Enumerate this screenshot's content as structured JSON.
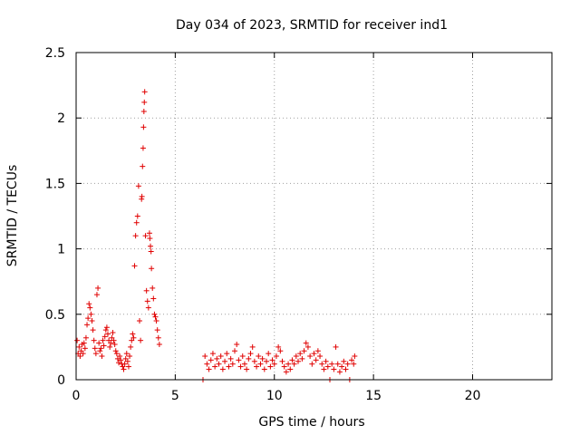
{
  "chart_data": {
    "type": "scatter",
    "title": "Day 034 of 2023, SRMTID for receiver ind1",
    "xlabel": "GPS time / hours",
    "ylabel": "SRMTID / TECUs",
    "xlim": [
      0,
      24
    ],
    "ylim": [
      0,
      2.5
    ],
    "xticks": [
      0,
      5,
      10,
      15,
      20
    ],
    "yticks": [
      0,
      0.5,
      1,
      1.5,
      2,
      2.5
    ],
    "ytick_labels": [
      "0",
      "0.5",
      "1",
      "1.5",
      "2",
      "2.5"
    ],
    "grid": true,
    "marker": "+",
    "color": "#e00000",
    "series": [
      {
        "name": "ind1",
        "points": [
          [
            0.05,
            0.3
          ],
          [
            0.1,
            0.2
          ],
          [
            0.15,
            0.25
          ],
          [
            0.2,
            0.18
          ],
          [
            0.25,
            0.22
          ],
          [
            0.3,
            0.27
          ],
          [
            0.35,
            0.2
          ],
          [
            0.4,
            0.28
          ],
          [
            0.45,
            0.24
          ],
          [
            0.5,
            0.32
          ],
          [
            0.55,
            0.42
          ],
          [
            0.6,
            0.47
          ],
          [
            0.65,
            0.58
          ],
          [
            0.7,
            0.55
          ],
          [
            0.75,
            0.5
          ],
          [
            0.8,
            0.45
          ],
          [
            0.85,
            0.38
          ],
          [
            0.9,
            0.3
          ],
          [
            0.95,
            0.24
          ],
          [
            1.0,
            0.2
          ],
          [
            1.05,
            0.65
          ],
          [
            1.1,
            0.7
          ],
          [
            1.15,
            0.28
          ],
          [
            1.2,
            0.22
          ],
          [
            1.25,
            0.24
          ],
          [
            1.3,
            0.18
          ],
          [
            1.35,
            0.3
          ],
          [
            1.4,
            0.26
          ],
          [
            1.45,
            0.33
          ],
          [
            1.5,
            0.38
          ],
          [
            1.55,
            0.4
          ],
          [
            1.6,
            0.35
          ],
          [
            1.65,
            0.3
          ],
          [
            1.7,
            0.25
          ],
          [
            1.75,
            0.28
          ],
          [
            1.8,
            0.32
          ],
          [
            1.85,
            0.36
          ],
          [
            1.9,
            0.3
          ],
          [
            1.95,
            0.27
          ],
          [
            2.0,
            0.22
          ],
          [
            2.05,
            0.2
          ],
          [
            2.1,
            0.16
          ],
          [
            2.15,
            0.13
          ],
          [
            2.2,
            0.18
          ],
          [
            2.25,
            0.15
          ],
          [
            2.3,
            0.12
          ],
          [
            2.35,
            0.1
          ],
          [
            2.4,
            0.08
          ],
          [
            2.45,
            0.12
          ],
          [
            2.5,
            0.16
          ],
          [
            2.55,
            0.2
          ],
          [
            2.6,
            0.14
          ],
          [
            2.65,
            0.1
          ],
          [
            2.7,
            0.18
          ],
          [
            2.75,
            0.25
          ],
          [
            2.8,
            0.3
          ],
          [
            2.85,
            0.35
          ],
          [
            2.9,
            0.32
          ],
          [
            2.95,
            0.87
          ],
          [
            3.0,
            1.1
          ],
          [
            3.05,
            1.2
          ],
          [
            3.1,
            1.25
          ],
          [
            3.15,
            1.48
          ],
          [
            3.2,
            0.45
          ],
          [
            3.25,
            0.3
          ],
          [
            3.3,
            1.38
          ],
          [
            3.32,
            1.4
          ],
          [
            3.35,
            1.63
          ],
          [
            3.38,
            1.77
          ],
          [
            3.4,
            1.93
          ],
          [
            3.42,
            2.05
          ],
          [
            3.44,
            2.12
          ],
          [
            3.46,
            2.2
          ],
          [
            3.5,
            1.1
          ],
          [
            3.55,
            0.68
          ],
          [
            3.6,
            0.6
          ],
          [
            3.65,
            0.55
          ],
          [
            3.7,
            1.12
          ],
          [
            3.72,
            1.08
          ],
          [
            3.75,
            1.02
          ],
          [
            3.78,
            0.98
          ],
          [
            3.8,
            0.85
          ],
          [
            3.85,
            0.7
          ],
          [
            3.9,
            0.62
          ],
          [
            3.95,
            0.5
          ],
          [
            4.0,
            0.48
          ],
          [
            4.05,
            0.45
          ],
          [
            4.1,
            0.38
          ],
          [
            4.15,
            0.32
          ],
          [
            4.2,
            0.27
          ],
          [
            6.4,
            0.0
          ],
          [
            6.5,
            0.18
          ],
          [
            6.6,
            0.12
          ],
          [
            6.7,
            0.08
          ],
          [
            6.8,
            0.15
          ],
          [
            6.9,
            0.2
          ],
          [
            7.0,
            0.1
          ],
          [
            7.1,
            0.16
          ],
          [
            7.2,
            0.12
          ],
          [
            7.3,
            0.18
          ],
          [
            7.4,
            0.08
          ],
          [
            7.5,
            0.14
          ],
          [
            7.6,
            0.2
          ],
          [
            7.7,
            0.1
          ],
          [
            7.8,
            0.16
          ],
          [
            7.9,
            0.12
          ],
          [
            8.0,
            0.22
          ],
          [
            8.1,
            0.27
          ],
          [
            8.2,
            0.15
          ],
          [
            8.3,
            0.1
          ],
          [
            8.4,
            0.18
          ],
          [
            8.5,
            0.12
          ],
          [
            8.6,
            0.08
          ],
          [
            8.7,
            0.16
          ],
          [
            8.8,
            0.2
          ],
          [
            8.9,
            0.25
          ],
          [
            9.0,
            0.14
          ],
          [
            9.1,
            0.1
          ],
          [
            9.2,
            0.18
          ],
          [
            9.3,
            0.12
          ],
          [
            9.4,
            0.16
          ],
          [
            9.5,
            0.08
          ],
          [
            9.6,
            0.14
          ],
          [
            9.7,
            0.2
          ],
          [
            9.8,
            0.1
          ],
          [
            9.9,
            0.15
          ],
          [
            10.0,
            0.12
          ],
          [
            10.1,
            0.18
          ],
          [
            10.2,
            0.25
          ],
          [
            10.3,
            0.22
          ],
          [
            10.4,
            0.14
          ],
          [
            10.5,
            0.1
          ],
          [
            10.6,
            0.06
          ],
          [
            10.7,
            0.12
          ],
          [
            10.8,
            0.08
          ],
          [
            10.9,
            0.15
          ],
          [
            11.0,
            0.12
          ],
          [
            11.1,
            0.18
          ],
          [
            11.2,
            0.14
          ],
          [
            11.3,
            0.2
          ],
          [
            11.4,
            0.16
          ],
          [
            11.5,
            0.22
          ],
          [
            11.6,
            0.28
          ],
          [
            11.7,
            0.25
          ],
          [
            11.8,
            0.18
          ],
          [
            11.9,
            0.12
          ],
          [
            12.0,
            0.2
          ],
          [
            12.1,
            0.15
          ],
          [
            12.2,
            0.22
          ],
          [
            12.3,
            0.18
          ],
          [
            12.4,
            0.12
          ],
          [
            12.5,
            0.08
          ],
          [
            12.6,
            0.14
          ],
          [
            12.7,
            0.1
          ],
          [
            12.8,
            0.0
          ],
          [
            12.9,
            0.12
          ],
          [
            13.0,
            0.08
          ],
          [
            13.1,
            0.25
          ],
          [
            13.2,
            0.12
          ],
          [
            13.3,
            0.06
          ],
          [
            13.4,
            0.1
          ],
          [
            13.5,
            0.14
          ],
          [
            13.6,
            0.08
          ],
          [
            13.7,
            0.12
          ],
          [
            13.8,
            0.0
          ],
          [
            13.9,
            0.15
          ],
          [
            14.0,
            0.12
          ],
          [
            14.05,
            0.18
          ]
        ]
      }
    ]
  }
}
